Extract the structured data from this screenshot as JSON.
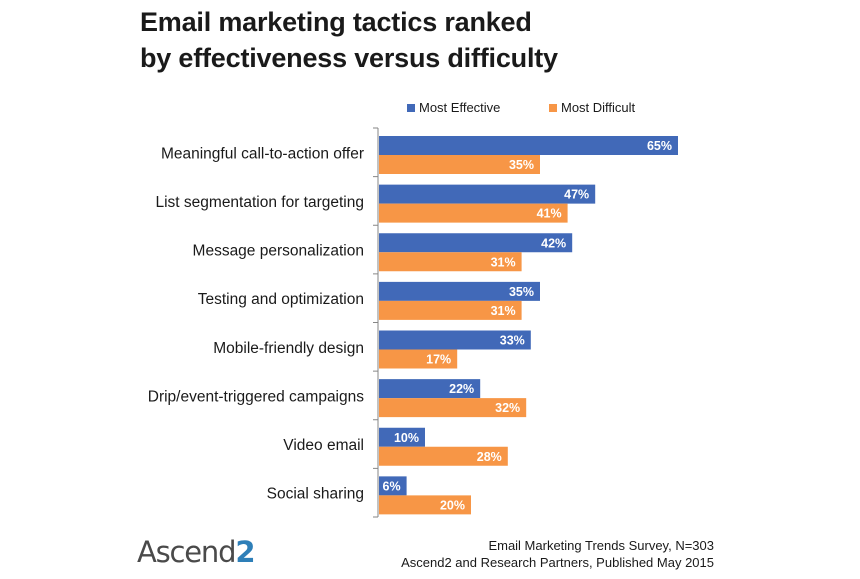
{
  "title_lines": [
    "Email marketing tactics ranked",
    "by effectiveness versus difficulty"
  ],
  "chart_data": {
    "type": "bar",
    "orientation": "horizontal",
    "categories": [
      "Meaningful call-to-action offer",
      "List segmentation for targeting",
      "Message personalization",
      "Testing and optimization",
      "Mobile-friendly design",
      "Drip/event-triggered campaigns",
      "Video email",
      "Social sharing"
    ],
    "series": [
      {
        "name": "Most Effective",
        "color": "#4169b8",
        "values": [
          65,
          47,
          42,
          35,
          33,
          22,
          10,
          6
        ]
      },
      {
        "name": "Most Difficult",
        "color": "#f79646",
        "values": [
          35,
          41,
          31,
          31,
          17,
          32,
          28,
          20
        ]
      }
    ],
    "value_suffix": "%",
    "xlim": [
      0,
      100
    ],
    "grid": false,
    "legend_position": "top"
  },
  "source_lines": [
    "Email Marketing Trends Survey, N=303",
    "Ascend2 and Research Partners, Published May 2015"
  ],
  "logo": {
    "text": "Ascend",
    "mark": "2"
  }
}
